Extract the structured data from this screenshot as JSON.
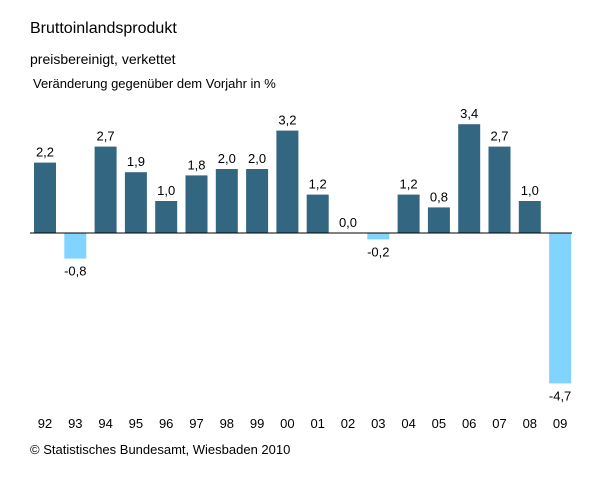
{
  "header": {
    "title": "Bruttoinlandsprodukt",
    "subtitle": "preisbereinigt, verkettet"
  },
  "footer": {
    "source": "© Statistisches Bundesamt, Wiesbaden 2010"
  },
  "colors": {
    "positive": "#336680",
    "negative": "#80D4FF",
    "axis": "#000000"
  },
  "chart_data": {
    "type": "bar",
    "title": "Bruttoinlandsprodukt",
    "subtitle": "preisbereinigt, verkettet",
    "ylabel": "Veränderung gegenüber dem Vorjahr in %",
    "categories": [
      "92",
      "93",
      "94",
      "95",
      "96",
      "97",
      "98",
      "99",
      "00",
      "01",
      "02",
      "03",
      "04",
      "05",
      "06",
      "07",
      "08",
      "09"
    ],
    "values": [
      2.2,
      -0.8,
      2.7,
      1.9,
      1.0,
      1.8,
      2.0,
      2.0,
      3.2,
      1.2,
      0.0,
      -0.2,
      1.2,
      0.8,
      3.4,
      2.7,
      1.0,
      -4.7
    ],
    "value_labels": [
      "2,2",
      "-0,8",
      "2,7",
      "1,9",
      "1,0",
      "1,8",
      "2,0",
      "2,0",
      "3,2",
      "1,2",
      "0,0",
      "-0,2",
      "1,2",
      "0,8",
      "3,4",
      "2,7",
      "1,0",
      "-4,7"
    ],
    "grid": false,
    "legend": "none"
  }
}
